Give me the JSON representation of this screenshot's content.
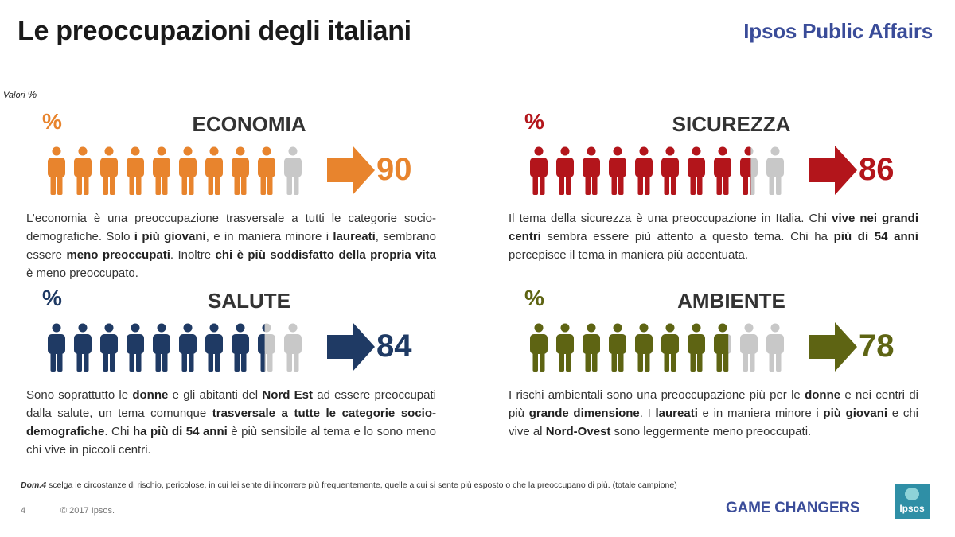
{
  "header": {
    "title": "Le preoccupazioni degli italiani",
    "brand": "Ipsos Public Affairs"
  },
  "unit_label": "Valori",
  "unit_symbol": "%",
  "chart_data": [
    {
      "type": "pictogram",
      "title": "ECONOMIA",
      "symbol": "%",
      "value": 90,
      "value_label": "90",
      "max": 100,
      "icons_total": 10,
      "color": "#e8842d"
    },
    {
      "type": "pictogram",
      "title": "SICUREZZA",
      "symbol": "%",
      "value": 86,
      "value_label": "86",
      "max": 100,
      "icons_total": 10,
      "color": "#b3151b"
    },
    {
      "type": "pictogram",
      "title": "SALUTE",
      "symbol": "%",
      "value": 84,
      "value_label": "84",
      "max": 100,
      "icons_total": 10,
      "color": "#1f3a64"
    },
    {
      "type": "pictogram",
      "title": "AMBIENTE",
      "symbol": "%",
      "value": 78,
      "value_label": "78",
      "max": 100,
      "icons_total": 10,
      "color": "#5e6413"
    }
  ],
  "inactive_color": "#c8c8c8",
  "descriptions": {
    "economia": [
      {
        "t": "L’economia è una preoccupazione trasversale a tutti le categorie socio-demografiche. Solo ",
        "b": false
      },
      {
        "t": "i più giovani",
        "b": true
      },
      {
        "t": ", e in maniera minore i ",
        "b": false
      },
      {
        "t": "laureati",
        "b": true
      },
      {
        "t": ", sembrano essere ",
        "b": false
      },
      {
        "t": "meno preoccupati",
        "b": true
      },
      {
        "t": ". Inoltre ",
        "b": false
      },
      {
        "t": "chi è più soddisfatto della propria vita",
        "b": true
      },
      {
        "t": " è meno preoccupato.",
        "b": false
      }
    ],
    "sicurezza": [
      {
        "t": "Il tema della sicurezza è una preoccupazione in Italia. Chi ",
        "b": false
      },
      {
        "t": "vive nei grandi centri",
        "b": true
      },
      {
        "t": " sembra essere più attento a questo tema. Chi ha ",
        "b": false
      },
      {
        "t": "più di 54 anni",
        "b": true
      },
      {
        "t": " percepisce il tema in maniera più accentuata.",
        "b": false
      }
    ],
    "salute": [
      {
        "t": "Sono soprattutto le ",
        "b": false
      },
      {
        "t": "donne",
        "b": true
      },
      {
        "t": " e gli abitanti del ",
        "b": false
      },
      {
        "t": "Nord Est",
        "b": true
      },
      {
        "t": " ad essere preoccupati dalla salute, un tema comunque ",
        "b": false
      },
      {
        "t": "trasversale a tutte le categorie socio-demografiche",
        "b": true
      },
      {
        "t": ". Chi ",
        "b": false
      },
      {
        "t": "ha più di 54 anni",
        "b": true
      },
      {
        "t": " è più sensibile al tema e lo sono meno chi vive in piccoli centri.",
        "b": false
      }
    ],
    "ambiente": [
      {
        "t": "I rischi ambientali sono una preoccupazione più per le ",
        "b": false
      },
      {
        "t": "donne",
        "b": true
      },
      {
        "t": " e nei centri di più ",
        "b": false
      },
      {
        "t": "grande dimensione",
        "b": true
      },
      {
        "t": ". I ",
        "b": false
      },
      {
        "t": "laureati",
        "b": true
      },
      {
        "t": " e in maniera minore i ",
        "b": false
      },
      {
        "t": "più giovani",
        "b": true
      },
      {
        "t": " e chi vive al ",
        "b": false
      },
      {
        "t": "Nord-Ovest",
        "b": true
      },
      {
        "t": " sono leggermente meno preoccupati.",
        "b": false
      }
    ]
  },
  "footer": {
    "dom_label": "Dom.4",
    "dom_text": " scelga le circostanze di rischio, pericolose, in cui lei sente di incorrere più frequentemente, quelle a cui si sente più esposto o che la preoccupano di più. (totale campione)",
    "page_number": "4",
    "copyright": "© 2017 Ipsos.",
    "tagline": "GAME CHANGERS",
    "logo_text": "Ipsos"
  }
}
